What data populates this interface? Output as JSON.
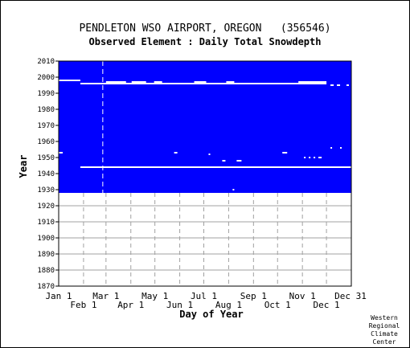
{
  "chart_data": {
    "type": "heatmap",
    "title": "PENDLETON WSO AIRPORT, OREGON   (356546)",
    "subtitle": "Observed Element : Daily Total Snowdepth",
    "xlabel": "Day of Year",
    "ylabel": "Year",
    "ylim": [
      1870,
      2010
    ],
    "yticks": [
      1870,
      1880,
      1890,
      1900,
      1910,
      1920,
      1930,
      1940,
      1950,
      1960,
      1970,
      1980,
      1990,
      2000,
      2010
    ],
    "xlim": [
      1,
      366
    ],
    "xticks_upper": [
      {
        "label": "Jan 1",
        "day": 1
      },
      {
        "label": "Mar 1",
        "day": 60
      },
      {
        "label": "May 1",
        "day": 121
      },
      {
        "label": "Jul 1",
        "day": 182
      },
      {
        "label": "Sep 1",
        "day": 244
      },
      {
        "label": "Nov 1",
        "day": 305
      },
      {
        "label": "Dec 31",
        "day": 365
      }
    ],
    "xticks_lower": [
      {
        "label": "Feb 1",
        "day": 32
      },
      {
        "label": "Apr 1",
        "day": 91
      },
      {
        "label": "Jun 1",
        "day": 152
      },
      {
        "label": "Aug 1",
        "day": 213
      },
      {
        "label": "Oct 1",
        "day": 274
      },
      {
        "label": "Dec 1",
        "day": 335
      }
    ],
    "grid": true,
    "data_color": "#0000ff",
    "missing_color": "#ffffff",
    "record_range": [
      1928,
      2010
    ],
    "missing_segments": [
      {
        "year": 1998,
        "start": 1,
        "end": 28
      },
      {
        "year": 1996,
        "start": 28,
        "end": 335
      },
      {
        "year": 1997,
        "start": 60,
        "end": 85
      },
      {
        "year": 1997,
        "start": 92,
        "end": 110
      },
      {
        "year": 1997,
        "start": 120,
        "end": 130
      },
      {
        "year": 1997,
        "start": 170,
        "end": 185
      },
      {
        "year": 1997,
        "start": 210,
        "end": 220
      },
      {
        "year": 1997,
        "start": 300,
        "end": 335
      },
      {
        "year": 1995,
        "start": 340,
        "end": 344
      },
      {
        "year": 1995,
        "start": 348,
        "end": 352
      },
      {
        "year": 1995,
        "start": 360,
        "end": 363
      },
      {
        "year": 1956,
        "start": 340,
        "end": 342
      },
      {
        "year": 1956,
        "start": 352,
        "end": 354
      },
      {
        "year": 1953,
        "start": 1,
        "end": 6
      },
      {
        "year": 1953,
        "start": 145,
        "end": 149
      },
      {
        "year": 1953,
        "start": 280,
        "end": 286
      },
      {
        "year": 1952,
        "start": 188,
        "end": 190
      },
      {
        "year": 1950,
        "start": 307,
        "end": 309
      },
      {
        "year": 1950,
        "start": 313,
        "end": 315
      },
      {
        "year": 1950,
        "start": 319,
        "end": 321
      },
      {
        "year": 1950,
        "start": 325,
        "end": 329
      },
      {
        "year": 1948,
        "start": 205,
        "end": 209
      },
      {
        "year": 1948,
        "start": 223,
        "end": 229
      },
      {
        "year": 1944,
        "start": 28,
        "end": 366
      },
      {
        "year": 1930,
        "start": 218,
        "end": 220
      }
    ],
    "dashed_line_day": 56
  },
  "credit": [
    "Western",
    "Regional",
    "Climate",
    "Center"
  ]
}
